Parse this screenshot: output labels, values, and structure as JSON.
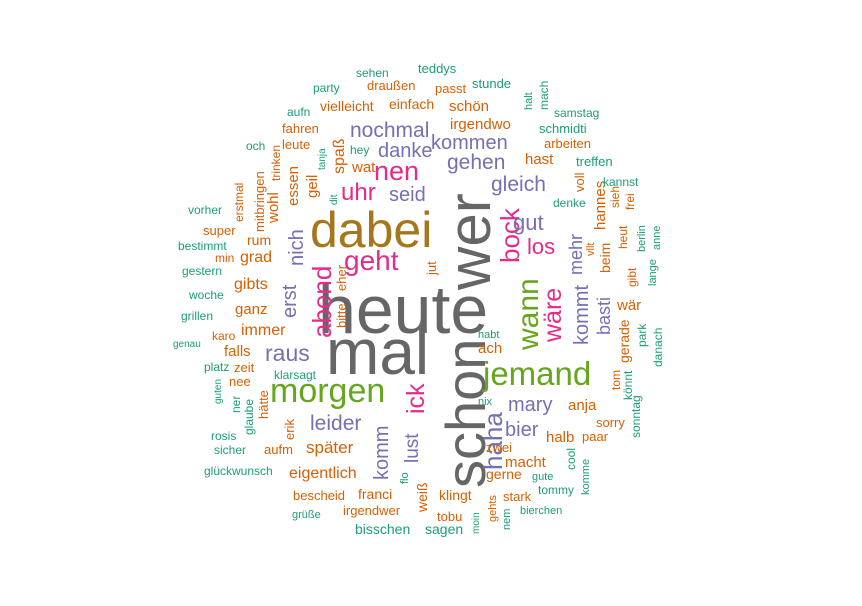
{
  "cloud": {
    "title": "",
    "palette": {
      "gray": "#666666",
      "olive": "#a6761d",
      "orange": "#d95f02",
      "teal": "#1b9e77",
      "purple": "#7570b3",
      "pink": "#e7298a",
      "green": "#66a61e",
      "gold": "#e6ab02"
    },
    "words": {
      "heute": "heute",
      "mal": "mal",
      "schon": "schon",
      "wer": "wer",
      "dabei": "dabei",
      "morgen": "morgen",
      "jemand": "jemand",
      "geht": "geht",
      "nen": "nen",
      "wann": "wann",
      "abend": "abend",
      "uhr": "uhr",
      "bock": "bock",
      "waere": "wäre",
      "haha": "haha",
      "ick": "ick",
      "raus": "raus",
      "leider": "leider",
      "nochmal": "nochmal",
      "gehen": "gehen",
      "kommen": "kommen",
      "gleich": "gleich",
      "gut": "gut",
      "los": "los",
      "danke": "danke",
      "seid": "seid",
      "erst": "erst",
      "nich": "nich",
      "mary": "mary",
      "bier": "bier",
      "komm": "komm",
      "lust": "lust",
      "kommt": "kommt",
      "mehr": "mehr",
      "basti": "basti",
      "spaeter": "später",
      "eigentlich": "eigentlich",
      "immer": "immer",
      "gibts": "gibts",
      "ganz": "ganz",
      "grad": "grad",
      "rum": "rum",
      "wohl": "wohl",
      "essen": "essen",
      "geil": "geil",
      "spass": "spaß",
      "wat": "wat",
      "hast": "hast",
      "schoen": "schön",
      "irgendwo": "irgendwo",
      "einfach": "einfach",
      "vielleicht": "vielleicht",
      "macht": "macht",
      "halb": "halb",
      "anja": "anja",
      "ach": "ach",
      "gerade": "gerade",
      "waer": "wär",
      "hannes": "hannes",
      "beim": "beim",
      "voll": "voll",
      "franci": "franci",
      "klingt": "klingt",
      "gerne": "gerne",
      "weiss": "weiß",
      "jut": "jut",
      "bitte": "bitte",
      "eher": "eher",
      "falls": "falls",
      "zeit": "zeit",
      "haette": "hätte",
      "erik": "erik",
      "aufm": "aufm",
      "mitbringen": "mitbringen",
      "trinken": "trinken",
      "leute": "leute",
      "fahren": "fahren",
      "hey": "hey",
      "bescheid": "bescheid",
      "irgendwer": "irgendwer",
      "bisschen": "bisschen",
      "sagen": "sagen",
      "tobu": "tobu",
      "zwei": "zwei",
      "stark": "stark",
      "tommy": "tommy",
      "paar": "paar",
      "sorry": "sorry",
      "tom": "tom",
      "arbeiten": "arbeiten",
      "treffen": "treffen",
      "schmidti": "schmidti",
      "samstag": "samstag",
      "passt": "passt",
      "draussen": "draußen",
      "teddys": "teddys",
      "sehen": "sehen",
      "stunde": "stunde",
      "party": "party",
      "aufn": "aufn",
      "halt": "halt",
      "mach": "mach",
      "och": "och",
      "tanja": "tanja",
      "dit": "dit",
      "erstmal": "erstmal",
      "vorher": "vorher",
      "super": "super",
      "bestimmt": "bestimmt",
      "min": "min",
      "gestern": "gestern",
      "woche": "woche",
      "grillen": "grillen",
      "karo": "karo",
      "genau": "genau",
      "platz": "platz",
      "nee": "nee",
      "klarsagt": "klarsagt",
      "guten": "guten",
      "ner": "ner",
      "glaube": "glaube",
      "rosis": "rosis",
      "sicher": "sicher",
      "glueckwunsch": "glückwunsch",
      "gruesse": "grüße",
      "flo": "flo",
      "moin": "moin",
      "nem": "nem",
      "gehts": "gehts",
      "bierchen": "bierchen",
      "gute": "gute",
      "komme": "komme",
      "cool": "cool",
      "nix": "nix",
      "habt": "habt",
      "sonntag": "sonntag",
      "koennt": "könnt",
      "park": "park",
      "danach": "danach",
      "lange": "lange",
      "anne": "anne",
      "gibt": "gibt",
      "heut": "heut",
      "berlin": "berlin",
      "frei": "frei",
      "kannst": "kannst",
      "sieh": "sieh",
      "denke": "denke",
      "vllt": "vllt"
    }
  }
}
